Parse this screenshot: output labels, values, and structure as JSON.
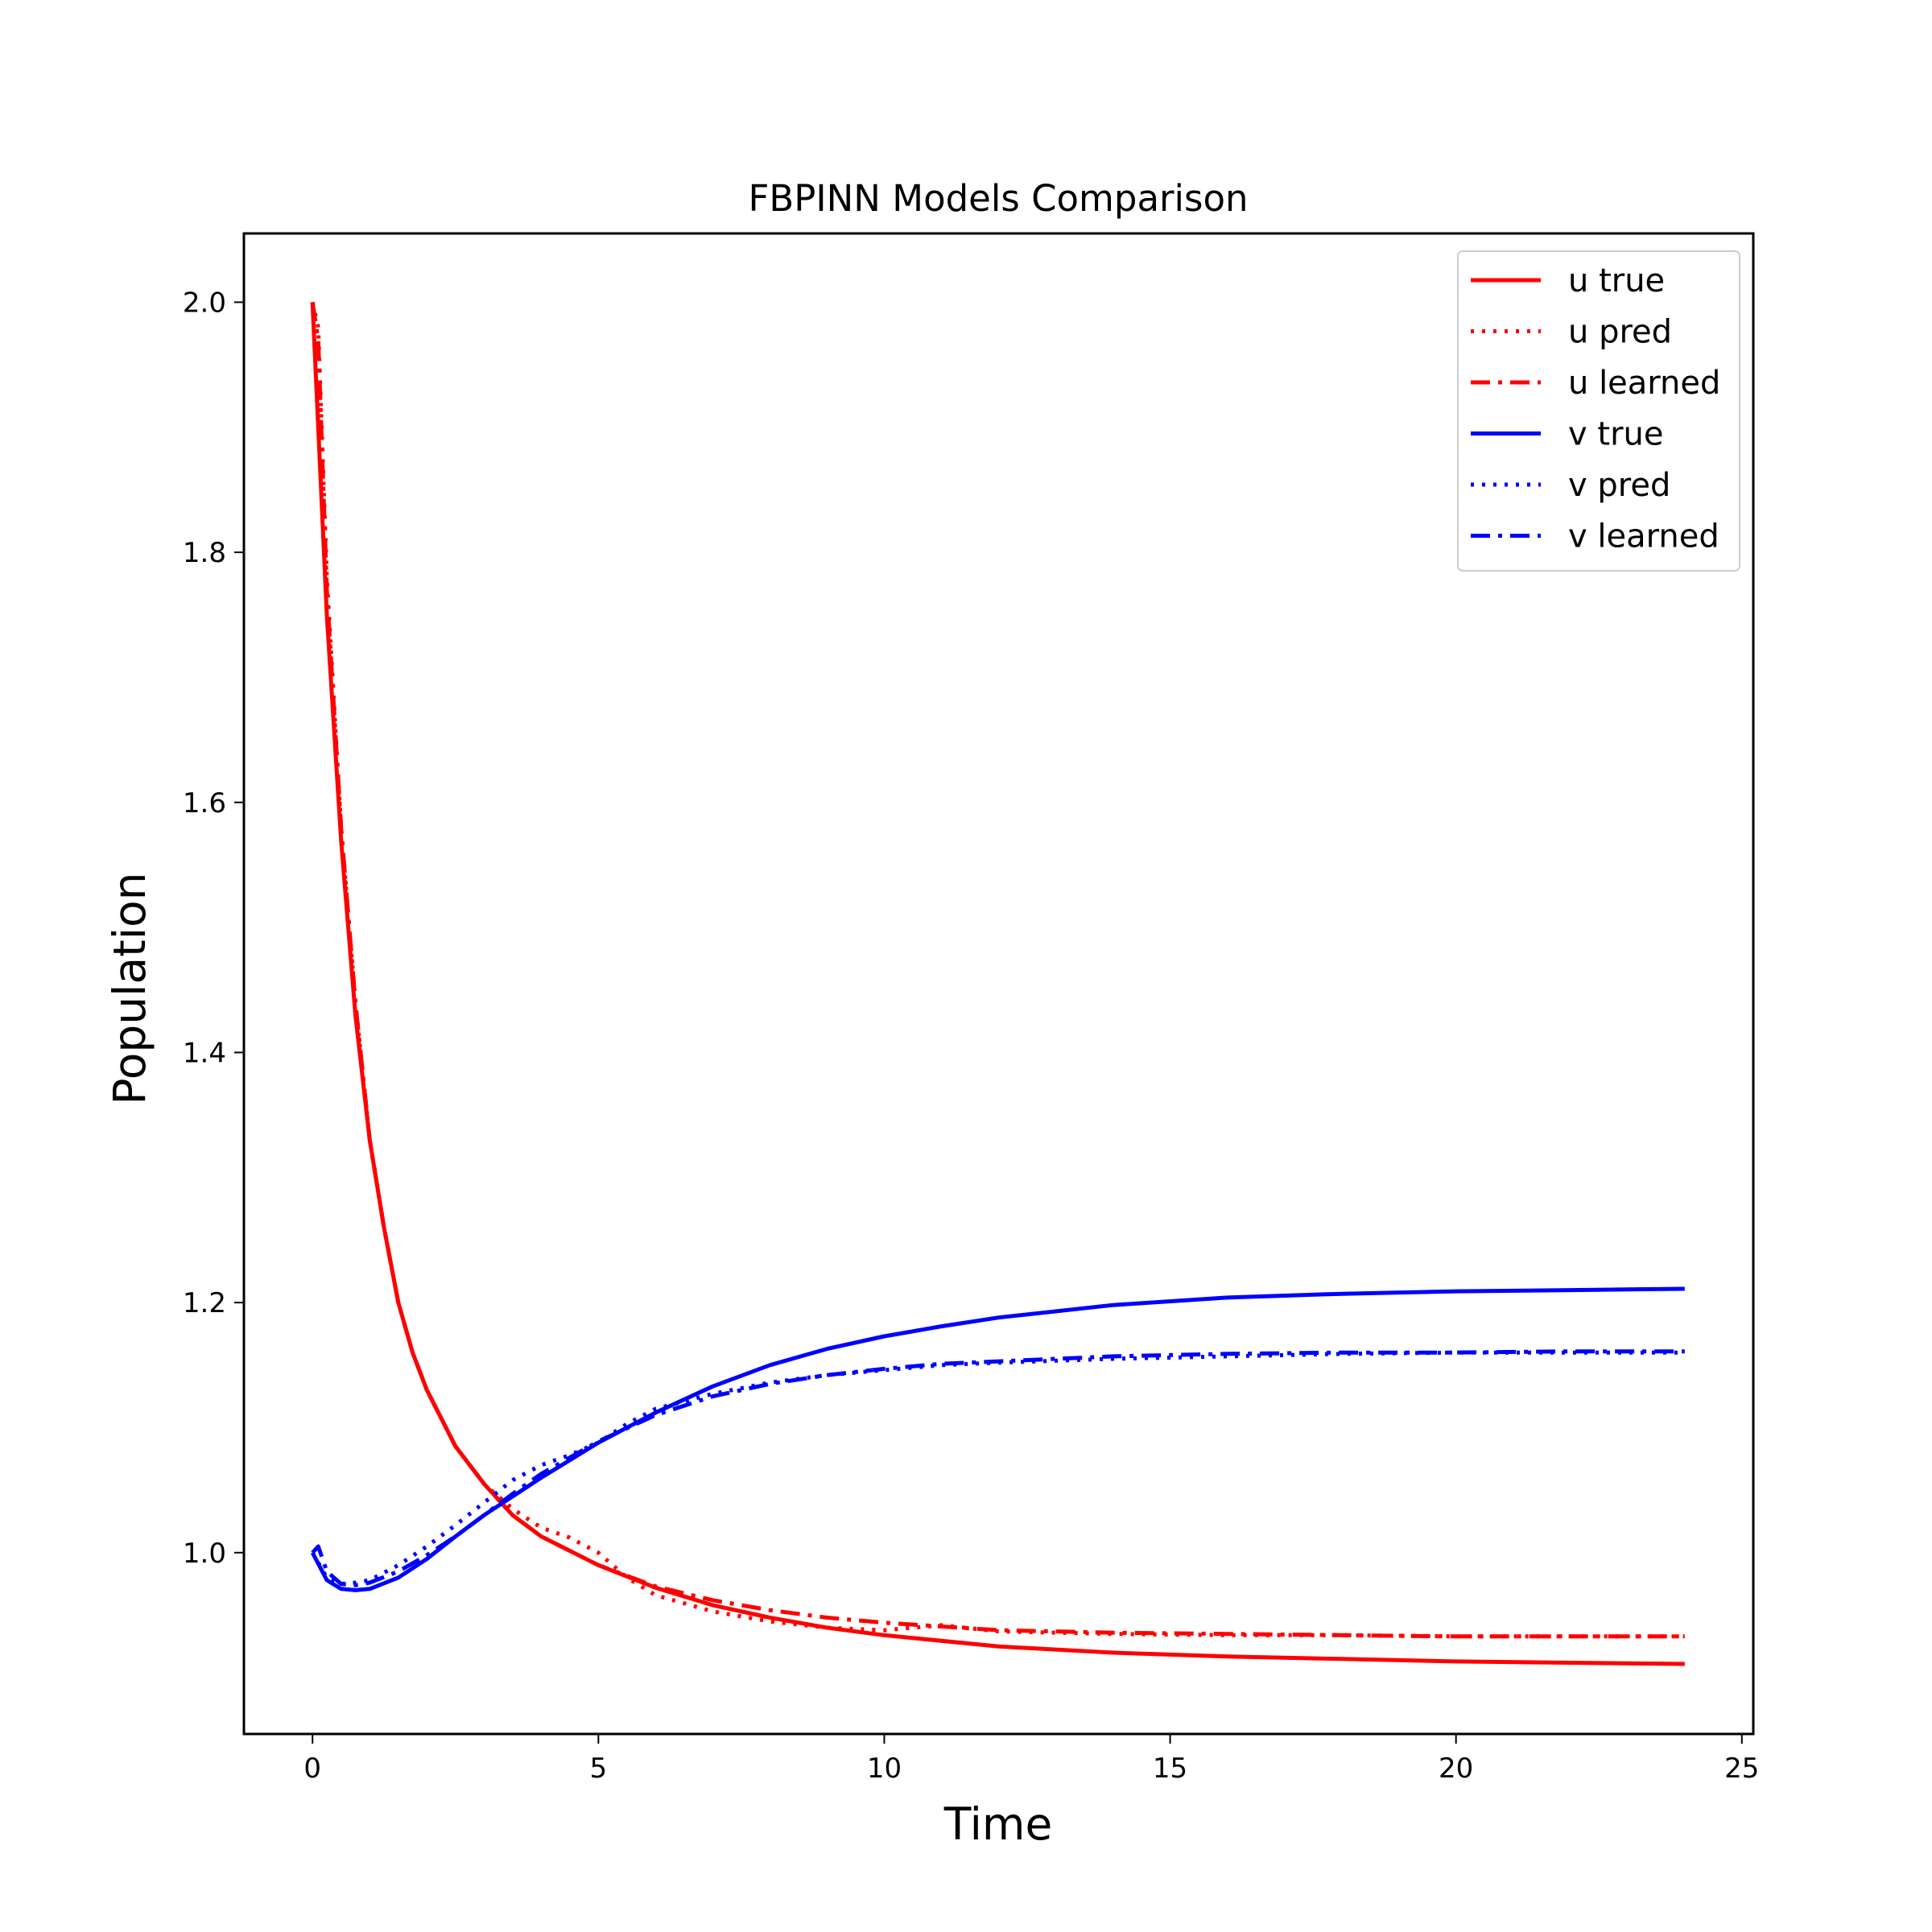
{
  "chart_data": {
    "type": "line",
    "title": "FBPINN Models Comparison",
    "xlabel": "Time",
    "ylabel": "Population",
    "xlim": [
      -1.2,
      25.2
    ],
    "ylim": [
      0.855,
      2.055
    ],
    "x_ticks": [
      0,
      5,
      10,
      15,
      20,
      25
    ],
    "y_ticks": [
      1.0,
      1.2,
      1.4,
      1.6,
      1.8,
      2.0
    ],
    "grid": false,
    "legend_position": "top-right",
    "series": [
      {
        "name": "u true",
        "color": "#ff0000",
        "style": "solid",
        "x": [
          0,
          0.25,
          0.5,
          0.75,
          1,
          1.25,
          1.5,
          1.75,
          2,
          2.5,
          3,
          3.5,
          4,
          5,
          6,
          7,
          8,
          9,
          10,
          12,
          14,
          16,
          18,
          20,
          22,
          24
        ],
        "y": [
          2.0,
          1.75,
          1.57,
          1.43,
          1.33,
          1.26,
          1.2,
          1.16,
          1.13,
          1.085,
          1.055,
          1.03,
          1.013,
          0.99,
          0.972,
          0.958,
          0.948,
          0.94,
          0.934,
          0.925,
          0.92,
          0.917,
          0.915,
          0.913,
          0.912,
          0.911
        ]
      },
      {
        "name": "u pred",
        "color": "#ff0000",
        "style": "dotted",
        "x": [
          0,
          0.1,
          0.25,
          0.5,
          0.75,
          1,
          1.25,
          1.5,
          1.75,
          2,
          2.5,
          3,
          3.5,
          4,
          4.5,
          5,
          5.5,
          6,
          7,
          8,
          9,
          10,
          11,
          12,
          14,
          16,
          18,
          20,
          22,
          24
        ],
        "y": [
          2.0,
          1.98,
          1.78,
          1.58,
          1.44,
          1.33,
          1.26,
          1.2,
          1.16,
          1.13,
          1.085,
          1.055,
          1.035,
          1.02,
          1.012,
          1.0,
          0.98,
          0.966,
          0.953,
          0.945,
          0.94,
          0.938,
          0.942,
          0.937,
          0.935,
          0.934,
          0.934,
          0.933,
          0.933,
          0.933
        ]
      },
      {
        "name": "u learned",
        "color": "#ff0000",
        "style": "dashdot",
        "x": [
          0,
          0.1,
          0.25,
          0.5,
          0.75,
          1,
          1.25,
          1.5,
          1.75,
          2,
          2.5,
          3,
          3.5,
          4,
          5,
          6,
          7,
          8,
          9,
          10,
          12,
          14,
          16,
          18,
          20,
          22,
          24
        ],
        "y": [
          2.0,
          1.97,
          1.77,
          1.58,
          1.44,
          1.33,
          1.26,
          1.2,
          1.16,
          1.13,
          1.085,
          1.055,
          1.03,
          1.013,
          0.99,
          0.973,
          0.962,
          0.954,
          0.948,
          0.944,
          0.938,
          0.936,
          0.935,
          0.934,
          0.933,
          0.933,
          0.933
        ]
      },
      {
        "name": "v true",
        "color": "#0000ff",
        "style": "solid",
        "x": [
          0,
          0.25,
          0.5,
          0.75,
          1,
          1.5,
          2,
          2.5,
          3,
          3.5,
          4,
          5,
          6,
          7,
          8,
          9,
          10,
          11,
          12,
          14,
          16,
          18,
          20,
          22,
          24
        ],
        "y": [
          1.0,
          0.978,
          0.971,
          0.97,
          0.971,
          0.98,
          0.995,
          1.013,
          1.03,
          1.045,
          1.06,
          1.088,
          1.112,
          1.133,
          1.15,
          1.163,
          1.173,
          1.181,
          1.188,
          1.198,
          1.204,
          1.207,
          1.209,
          1.21,
          1.211
        ]
      },
      {
        "name": "v pred",
        "color": "#0000ff",
        "style": "dotted",
        "x": [
          0,
          0.25,
          0.5,
          0.75,
          1,
          1.5,
          2,
          2.5,
          3,
          3.5,
          4,
          4.5,
          5,
          5.5,
          6,
          7,
          8,
          9,
          10,
          11,
          12,
          14,
          16,
          18,
          20,
          22,
          24
        ],
        "y": [
          1.0,
          0.98,
          0.975,
          0.976,
          0.978,
          0.99,
          1.005,
          1.022,
          1.04,
          1.058,
          1.07,
          1.078,
          1.088,
          1.103,
          1.115,
          1.127,
          1.136,
          1.142,
          1.146,
          1.15,
          1.152,
          1.155,
          1.157,
          1.159,
          1.16,
          1.16,
          1.16
        ]
      },
      {
        "name": "v learned",
        "color": "#0000ff",
        "style": "dashdot",
        "x": [
          0,
          0.1,
          0.25,
          0.5,
          0.75,
          1,
          1.5,
          2,
          2.5,
          3,
          3.5,
          4,
          5,
          6,
          7,
          8,
          9,
          10,
          11,
          12,
          14,
          16,
          18,
          20,
          22,
          24
        ],
        "y": [
          1.0,
          1.005,
          0.985,
          0.975,
          0.974,
          0.976,
          0.985,
          0.998,
          1.013,
          1.03,
          1.047,
          1.063,
          1.089,
          1.11,
          1.125,
          1.135,
          1.142,
          1.147,
          1.151,
          1.153,
          1.157,
          1.159,
          1.16,
          1.16,
          1.161,
          1.161
        ]
      }
    ]
  }
}
